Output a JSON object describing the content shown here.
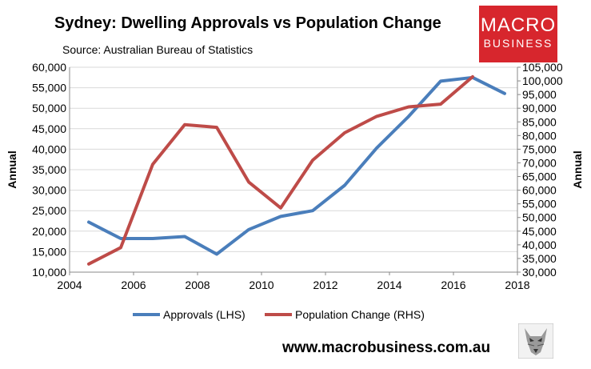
{
  "header": {
    "title": "Sydney: Dwelling Approvals vs Population Change",
    "source": "Source: Australian Bureau of Statistics"
  },
  "logo": {
    "line1": "MACRO",
    "line2": "BUSINESS",
    "color": "#d7262d"
  },
  "footer": {
    "url": "www.macrobusiness.com.au"
  },
  "chart_data": {
    "type": "line",
    "xlim": [
      2004,
      2018
    ],
    "x_ticks": [
      "2004",
      "2006",
      "2008",
      "2010",
      "2012",
      "2014",
      "2016",
      "2018"
    ],
    "ylabel": "Annual",
    "ylim": [
      10000,
      60000
    ],
    "y_ticks": [
      "10,000",
      "15,000",
      "20,000",
      "25,000",
      "30,000",
      "35,000",
      "40,000",
      "45,000",
      "50,000",
      "55,000",
      "60,000"
    ],
    "y2label": "Annual",
    "y2lim": [
      30000,
      105000
    ],
    "y2_ticks": [
      "30,000",
      "35,000",
      "40,000",
      "45,000",
      "50,000",
      "55,000",
      "60,000",
      "65,000",
      "70,000",
      "75,000",
      "80,000",
      "85,000",
      "90,000",
      "95,000",
      "100,000",
      "105,000"
    ],
    "grid": true,
    "legend_position": "bottom",
    "series": [
      {
        "name": "Approvals (LHS)",
        "axis": "left",
        "color": "#4a7ebb",
        "x": [
          2004.6,
          2005.6,
          2006.6,
          2007.6,
          2008.6,
          2009.6,
          2010.6,
          2011.6,
          2012.6,
          2013.6,
          2014.6,
          2015.6,
          2016.6,
          2017.6
        ],
        "values": [
          22200,
          18200,
          18200,
          18700,
          14400,
          20400,
          23600,
          25000,
          31200,
          40300,
          48000,
          56600,
          57500,
          53600
        ]
      },
      {
        "name": "Population Change (RHS)",
        "axis": "right",
        "color": "#be4b48",
        "x": [
          2004.6,
          2005.6,
          2006.6,
          2007.6,
          2008.6,
          2009.6,
          2010.6,
          2011.6,
          2012.6,
          2013.6,
          2014.6,
          2015.6,
          2016.6
        ],
        "values": [
          33000,
          39000,
          69500,
          84000,
          83000,
          63000,
          53500,
          71000,
          81000,
          87000,
          90500,
          91500,
          101500
        ]
      }
    ]
  }
}
